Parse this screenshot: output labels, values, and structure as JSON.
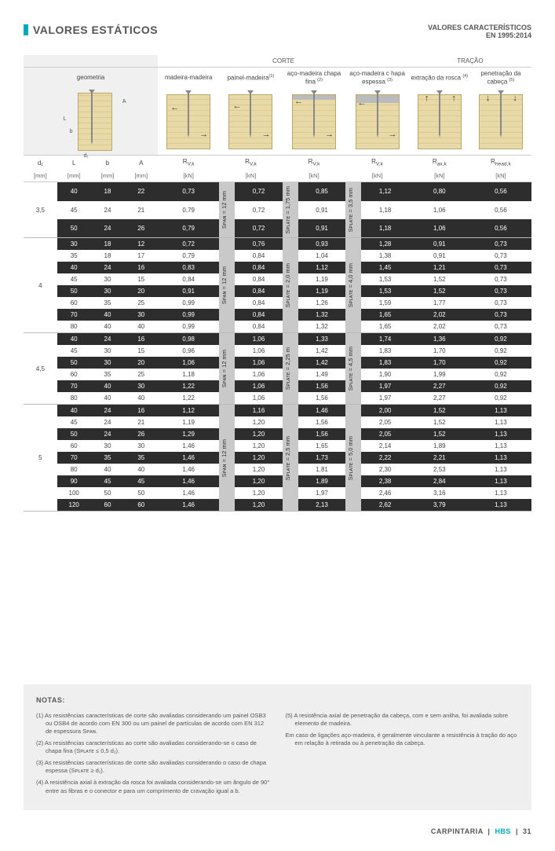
{
  "header": {
    "title": "VALORES ESTÁTICOS",
    "subtitle_l1": "VALORES CARACTERÍSTICOS",
    "subtitle_l2": "EN 1995:2014"
  },
  "topGroups": {
    "corte": "CORTE",
    "tracao": "TRAÇÃO"
  },
  "cols": {
    "geom": "geometria",
    "mm": "madeira-madeira",
    "pm": "painel-madeira",
    "pm_sup": "(1)",
    "acf": "aço-madeira chapa fina",
    "acf_sup": "(2)",
    "ace": "aço-madeira c hapa espessa",
    "ace_sup": "(3)",
    "ext": "extração da rosca",
    "ext_sup": "(4)",
    "pen": "penetração da cabeça",
    "pen_sup": "(5)"
  },
  "symbols": {
    "d1": "d₁",
    "L": "L",
    "b": "b",
    "A": "A",
    "Rvk": "R",
    "Rvk_sub": "V,k",
    "Rax": "R",
    "Rax_sub": "ax,k",
    "Rhead": "R",
    "Rhead_sub": "head,k"
  },
  "unit_mm": "[mm]",
  "unit_kn": "[kN]",
  "span_labels": {
    "span12": "Sᴘᴀɴ = 12 mm",
    "plate175": "Sᴘʟᴀᴛᴇ = 1,75 mm",
    "plate35": "Sᴘʟᴀᴛᴇ = 3,5 mm",
    "plate20": "Sᴘʟᴀᴛᴇ = 2,0 mm",
    "plate40": "Sᴘʟᴀᴛᴇ = 4,0 mm",
    "plate225": "Sᴘʟᴀᴛᴇ = 2,25 m",
    "plate45": "Sᴘʟᴀᴛᴇ = 4,5 mm",
    "plate25": "Sᴘʟᴀᴛᴇ = 2,5 mm",
    "plate50": "Sᴘʟᴀᴛᴇ = 5,0 mm"
  },
  "groups": [
    {
      "d1": "3,5",
      "span_pan": "span12",
      "span_cf": "plate175",
      "span_ce": "plate35",
      "rows": [
        {
          "L": "40",
          "b": "18",
          "A": "22",
          "mm": "0,73",
          "pm": "0,72",
          "acf": "0,85",
          "ace": "1,12",
          "ext": "0,80",
          "pen": "0,56"
        },
        {
          "L": "45",
          "b": "24",
          "A": "21",
          "mm": "0,79",
          "pm": "0,72",
          "acf": "0,91",
          "ace": "1,18",
          "ext": "1,06",
          "pen": "0,56"
        },
        {
          "L": "50",
          "b": "24",
          "A": "26",
          "mm": "0,79",
          "pm": "0,72",
          "acf": "0,91",
          "ace": "1,18",
          "ext": "1,06",
          "pen": "0,56"
        }
      ]
    },
    {
      "d1": "4",
      "span_pan": "span12",
      "span_cf": "plate20",
      "span_ce": "plate40",
      "rows": [
        {
          "L": "30",
          "b": "18",
          "A": "12",
          "mm": "0,72",
          "pm": "0,76",
          "acf": "0,93",
          "ace": "1,28",
          "ext": "0,91",
          "pen": "0,73"
        },
        {
          "L": "35",
          "b": "18",
          "A": "17",
          "mm": "0,79",
          "pm": "0,84",
          "acf": "1,04",
          "ace": "1,38",
          "ext": "0,91",
          "pen": "0,73"
        },
        {
          "L": "40",
          "b": "24",
          "A": "16",
          "mm": "0,83",
          "pm": "0,84",
          "acf": "1,12",
          "ace": "1,45",
          "ext": "1,21",
          "pen": "0,73"
        },
        {
          "L": "45",
          "b": "30",
          "A": "15",
          "mm": "0,84",
          "pm": "0,84",
          "acf": "1,19",
          "ace": "1,53",
          "ext": "1,52",
          "pen": "0,73"
        },
        {
          "L": "50",
          "b": "30",
          "A": "20",
          "mm": "0,91",
          "pm": "0,84",
          "acf": "1,19",
          "ace": "1,53",
          "ext": "1,52",
          "pen": "0,73"
        },
        {
          "L": "60",
          "b": "35",
          "A": "25",
          "mm": "0,99",
          "pm": "0,84",
          "acf": "1,26",
          "ace": "1,59",
          "ext": "1,77",
          "pen": "0,73"
        },
        {
          "L": "70",
          "b": "40",
          "A": "30",
          "mm": "0,99",
          "pm": "0,84",
          "acf": "1,32",
          "ace": "1,65",
          "ext": "2,02",
          "pen": "0,73"
        },
        {
          "L": "80",
          "b": "40",
          "A": "40",
          "mm": "0,99",
          "pm": "0,84",
          "acf": "1,32",
          "ace": "1,65",
          "ext": "2,02",
          "pen": "0,73"
        }
      ]
    },
    {
      "d1": "4,5",
      "span_pan": "span12",
      "span_cf": "plate225",
      "span_ce": "plate45",
      "rows": [
        {
          "L": "40",
          "b": "24",
          "A": "16",
          "mm": "0,98",
          "pm": "1,06",
          "acf": "1,33",
          "ace": "1,74",
          "ext": "1,36",
          "pen": "0,92"
        },
        {
          "L": "45",
          "b": "30",
          "A": "15",
          "mm": "0,96",
          "pm": "1,06",
          "acf": "1,42",
          "ace": "1,83",
          "ext": "1,70",
          "pen": "0,92"
        },
        {
          "L": "50",
          "b": "30",
          "A": "20",
          "mm": "1,06",
          "pm": "1,06",
          "acf": "1,42",
          "ace": "1,83",
          "ext": "1,70",
          "pen": "0,92"
        },
        {
          "L": "60",
          "b": "35",
          "A": "25",
          "mm": "1,18",
          "pm": "1,06",
          "acf": "1,49",
          "ace": "1,90",
          "ext": "1,99",
          "pen": "0,92"
        },
        {
          "L": "70",
          "b": "40",
          "A": "30",
          "mm": "1,22",
          "pm": "1,06",
          "acf": "1,56",
          "ace": "1,97",
          "ext": "2,27",
          "pen": "0,92"
        },
        {
          "L": "80",
          "b": "40",
          "A": "40",
          "mm": "1,22",
          "pm": "1,06",
          "acf": "1,56",
          "ace": "1,97",
          "ext": "2,27",
          "pen": "0,92"
        }
      ]
    },
    {
      "d1": "5",
      "span_pan": "span12",
      "span_cf": "plate25",
      "span_ce": "plate50",
      "rows": [
        {
          "L": "40",
          "b": "24",
          "A": "16",
          "mm": "1,12",
          "pm": "1,16",
          "acf": "1,46",
          "ace": "2,00",
          "ext": "1,52",
          "pen": "1,13"
        },
        {
          "L": "45",
          "b": "24",
          "A": "21",
          "mm": "1,19",
          "pm": "1,20",
          "acf": "1,56",
          "ace": "2,05",
          "ext": "1,52",
          "pen": "1,13"
        },
        {
          "L": "50",
          "b": "24",
          "A": "26",
          "mm": "1,29",
          "pm": "1,20",
          "acf": "1,56",
          "ace": "2,05",
          "ext": "1,52",
          "pen": "1,13"
        },
        {
          "L": "60",
          "b": "30",
          "A": "30",
          "mm": "1,46",
          "pm": "1,20",
          "acf": "1,65",
          "ace": "2,14",
          "ext": "1,89",
          "pen": "1,13"
        },
        {
          "L": "70",
          "b": "35",
          "A": "35",
          "mm": "1,46",
          "pm": "1,20",
          "acf": "1,73",
          "ace": "2,22",
          "ext": "2,21",
          "pen": "1,13"
        },
        {
          "L": "80",
          "b": "40",
          "A": "40",
          "mm": "1,46",
          "pm": "1,20",
          "acf": "1,81",
          "ace": "2,30",
          "ext": "2,53",
          "pen": "1,13"
        },
        {
          "L": "90",
          "b": "45",
          "A": "45",
          "mm": "1,46",
          "pm": "1,20",
          "acf": "1,89",
          "ace": "2,38",
          "ext": "2,84",
          "pen": "1,13"
        },
        {
          "L": "100",
          "b": "50",
          "A": "50",
          "mm": "1,46",
          "pm": "1,20",
          "acf": "1,97",
          "ace": "2,46",
          "ext": "3,16",
          "pen": "1,13"
        },
        {
          "L": "120",
          "b": "60",
          "A": "60",
          "mm": "1,46",
          "pm": "1,20",
          "acf": "2,13",
          "ace": "2,62",
          "ext": "3,79",
          "pen": "1,13"
        }
      ]
    }
  ],
  "notes": {
    "title": "NOTAS:",
    "left": [
      "(1) As resistências características de corte são avaliadas considerando um painel OSB3 ou OSB4 de acordo com EN 300 ou um painel de partículas de acordo com EN 312 de espessura Sᴘᴀɴ.",
      "(2) As resistências características ao corte são avaliadas considerando-se o caso de chapa fina (Sᴘʟᴀᴛᴇ ≤ 0,5 d₁).",
      "(3) As resistências características de corte são avaliadas considerando o caso de chapa espessa (Sᴘʟᴀᴛᴇ ≥ d₁).",
      "(4) A resistência axial à extração da rosca foi avaliada considerando-se um ângulo de 90° entre as fibras e o conector e para um comprimento de cravação igual a b."
    ],
    "right": [
      "(5) A resistência axial de penetração da cabeça, com e sem anilha, foi avaliada sobre elemento de madeira.",
      "Em caso de ligações aço-madeira, é geralmente vinculante a resistência à tração do aço em relação à retirada ou à penetração da cabeça."
    ]
  },
  "footer": {
    "left": "CARPINTARIA",
    "mid": "HBS",
    "page": "31"
  },
  "colors": {
    "accent": "#00a9b7",
    "dark": "#2d2d2d",
    "wood1": "#e8d9a8",
    "wood2": "#ddc98e"
  }
}
